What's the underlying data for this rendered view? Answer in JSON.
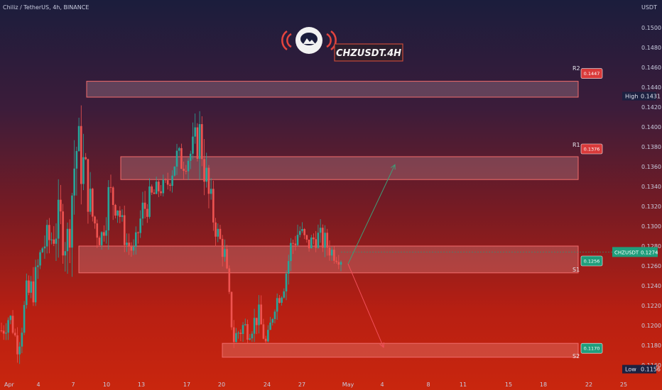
{
  "header": {
    "symbol_line": "Chiliz / TetherUS, 4h, BINANCE",
    "currency": "USDT"
  },
  "logo_text": "CHZUSDT.4H",
  "chart_data": {
    "type": "candlestick",
    "y_ticks": [
      0.15,
      0.148,
      0.146,
      0.144,
      0.142,
      0.14,
      0.138,
      0.136,
      0.134,
      0.132,
      0.13,
      0.128,
      0.126,
      0.124,
      0.122,
      0.12,
      0.118,
      0.116
    ],
    "x_ticks": [
      "Apr",
      "4",
      "7",
      "10",
      "13",
      "17",
      "20",
      "24",
      "27",
      "May",
      "4",
      "8",
      "11",
      "15",
      "18",
      "22",
      "25"
    ],
    "ylim": [
      0.1145,
      0.1515
    ],
    "price_path": [
      [
        0.1215,
        0.1175
      ],
      [
        0.1222,
        0.1198
      ],
      [
        0.119,
        0.1165
      ],
      [
        0.125,
        0.1205
      ],
      [
        0.1262,
        0.1218
      ],
      [
        0.1305,
        0.1258
      ],
      [
        0.131,
        0.1265
      ],
      [
        0.1338,
        0.1272
      ],
      [
        0.1318,
        0.125
      ],
      [
        0.143,
        0.133
      ],
      [
        0.1395,
        0.132
      ],
      [
        0.1335,
        0.1285
      ],
      [
        0.13,
        0.1272
      ],
      [
        0.1362,
        0.13
      ],
      [
        0.134,
        0.1305
      ],
      [
        0.13,
        0.127
      ],
      [
        0.1285,
        0.1262
      ],
      [
        0.1335,
        0.1295
      ],
      [
        0.1345,
        0.131
      ],
      [
        0.135,
        0.1325
      ],
      [
        0.1352,
        0.133
      ],
      [
        0.1392,
        0.1345
      ],
      [
        0.1378,
        0.135
      ],
      [
        0.1395,
        0.1355
      ],
      [
        0.1425,
        0.136
      ],
      [
        0.136,
        0.13
      ],
      [
        0.131,
        0.128
      ],
      [
        0.1285,
        0.1255
      ],
      [
        0.1195,
        0.1175
      ],
      [
        0.122,
        0.1178
      ],
      [
        0.1205,
        0.1185
      ],
      [
        0.1228,
        0.1195
      ],
      [
        0.119,
        0.1168
      ],
      [
        0.1235,
        0.121
      ],
      [
        0.125,
        0.1225
      ],
      [
        0.13,
        0.126
      ],
      [
        0.1312,
        0.128
      ],
      [
        0.129,
        0.127
      ],
      [
        0.1305,
        0.1275
      ],
      [
        0.13,
        0.1268
      ],
      [
        0.1285,
        0.1262
      ],
      [
        0.1278,
        0.1258
      ]
    ],
    "zones": [
      {
        "label": "R2",
        "price_tag": "0.1447",
        "top": 0.1446,
        "bottom": 0.143
      },
      {
        "label": "R1",
        "price_tag": "0.1376",
        "top": 0.137,
        "bottom": 0.1347
      },
      {
        "label": "S1",
        "price_tag": "0.1256",
        "top": 0.128,
        "bottom": 0.1253
      },
      {
        "label": "S2",
        "price_tag": "0.1170",
        "top": 0.1182,
        "bottom": 0.1168
      }
    ],
    "projections": [
      {
        "direction": "up",
        "from": 0.1262,
        "to": 0.1362,
        "color": "#3e9e78"
      },
      {
        "direction": "down",
        "from": 0.1262,
        "to": 0.1178,
        "color": "#f0505a"
      }
    ],
    "last_price": {
      "label": "CHZUSDT",
      "value": "0.1274",
      "color": "#1f9e7c"
    },
    "high": {
      "label": "High",
      "value": "0.1431"
    },
    "low": {
      "label": "Low",
      "value": "0.1156"
    },
    "colors": {
      "up": "#26a69a",
      "down": "#ef5350",
      "zone_border": "#f26c6c",
      "tag_red": "#d93a3a",
      "tag_green": "#1f9e7c"
    }
  }
}
